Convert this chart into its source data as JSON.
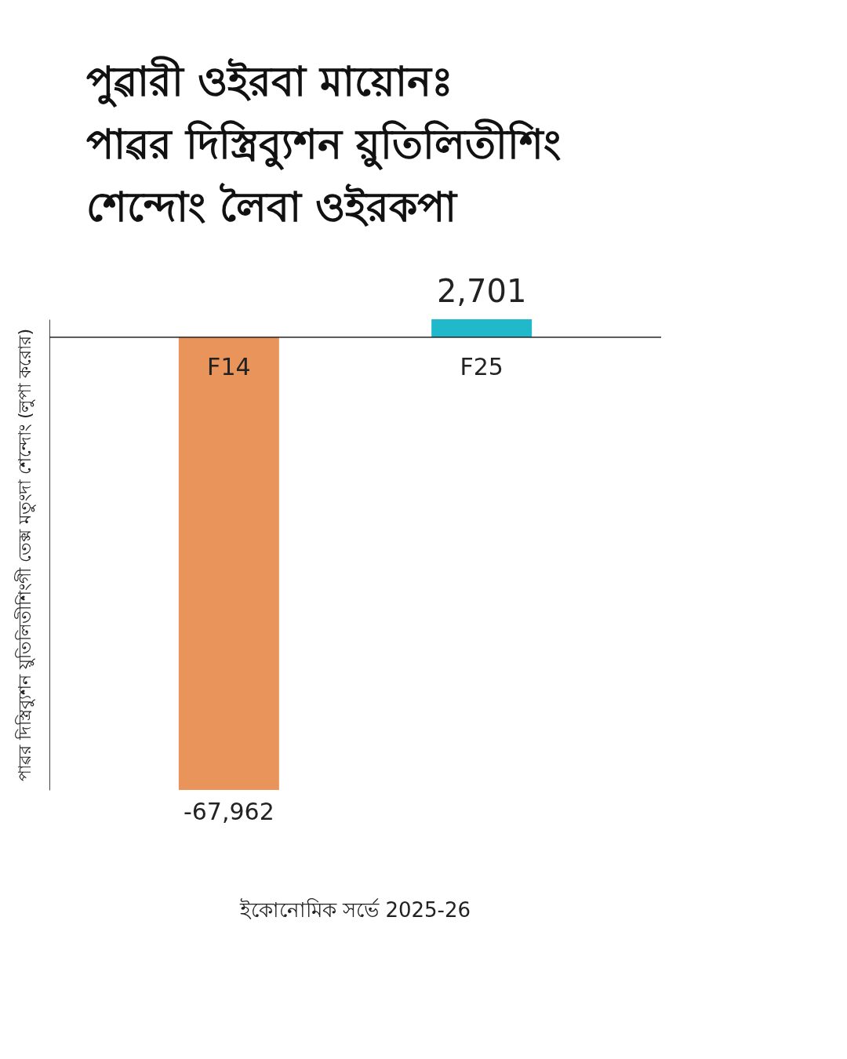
{
  "chart_data": {
    "type": "bar",
    "title": "পুৱারী ওইরবা মায়োনঃ\nপাৱর দিস্ত্রিব্যুশন য়ুতিলিতীশিং\nশেন্দোং লৈবা ওইরকপা",
    "ylabel": "পাৱর দিস্ত্রিব্যুশন য়ুতিলিতীশিংগী তেক্স মতুংদা শেন্দোং (লুপা করোর)",
    "categories": [
      "F14",
      "F25"
    ],
    "values": [
      -67962,
      2701
    ],
    "colors": [
      "#e8945a",
      "#22b8cc"
    ],
    "value_labels": [
      "-67,962",
      "2,701"
    ],
    "grid": false,
    "legend": false,
    "annotations": [
      "ইকোনোমিক সর্ভে 2025-26"
    ]
  }
}
